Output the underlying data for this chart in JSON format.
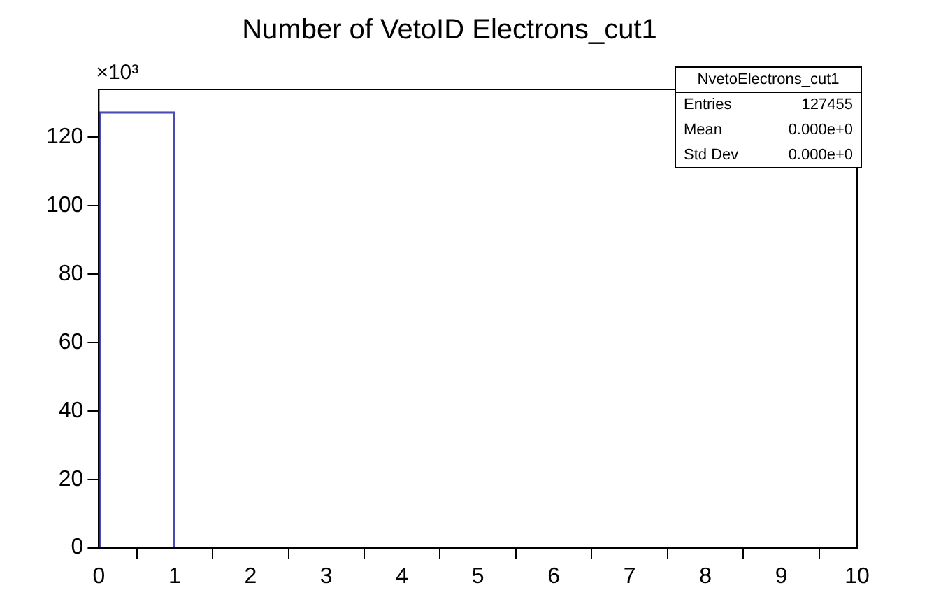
{
  "chart_data": {
    "type": "histogram",
    "title": "Number of VetoID Electrons_cut1",
    "ylabel": "×10³",
    "bins": [
      0,
      1,
      2,
      3,
      4,
      5,
      6,
      7,
      8,
      9,
      10
    ],
    "values": [
      127.5,
      0,
      0,
      0,
      0,
      0,
      0,
      0,
      0,
      0
    ],
    "color": "#4b4bb4",
    "xlim": [
      0,
      10
    ],
    "xticks": [
      0,
      1,
      2,
      3,
      4,
      5,
      6,
      7,
      8,
      9,
      10
    ],
    "ylim": [
      0,
      134
    ],
    "yticks": [
      0,
      20,
      40,
      60,
      80,
      100,
      120
    ],
    "grid": false,
    "legend": false,
    "annotations": [
      "NvetoElectrons_cut1",
      "Entries 127455",
      "Mean 0.000e+0",
      "Std Dev 0.000e+0"
    ]
  }
}
